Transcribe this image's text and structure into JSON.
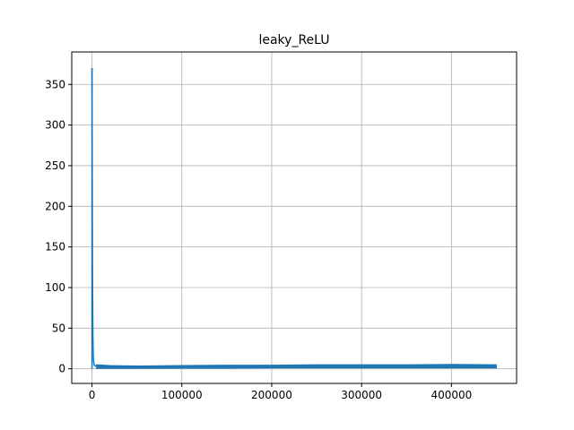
{
  "chart_data": {
    "type": "line",
    "title": "leaky_ReLU",
    "xlabel": "",
    "ylabel": "",
    "xlim": [
      -22500,
      472500
    ],
    "ylim": [
      -18,
      390
    ],
    "xticks": [
      0,
      100000,
      200000,
      300000,
      400000
    ],
    "xtick_labels": [
      "0",
      "100000",
      "200000",
      "300000",
      "400000"
    ],
    "yticks": [
      0,
      50,
      100,
      150,
      200,
      250,
      300,
      350
    ],
    "ytick_labels": [
      "0",
      "50",
      "100",
      "150",
      "200",
      "250",
      "300",
      "350"
    ],
    "grid": true,
    "line_color": "#1f77b4",
    "series": [
      {
        "x": [
          0,
          100,
          200,
          400,
          600,
          800,
          1000,
          1500,
          2000,
          3000,
          5000,
          10000,
          20000,
          50000,
          100000,
          150000,
          200000,
          250000,
          300000,
          350000,
          400000,
          450000
        ],
        "y": [
          370,
          350,
          300,
          200,
          120,
          78,
          40,
          14,
          6,
          4,
          3,
          2.5,
          2,
          2,
          2.5,
          2.5,
          2.7,
          2.8,
          3,
          3,
          3,
          3
        ],
        "band": [
          [
            5000,
            0.5,
            5
          ],
          [
            20000,
            0.5,
            4
          ],
          [
            50000,
            0.5,
            3.5
          ],
          [
            100000,
            0.8,
            4
          ],
          [
            150000,
            0.8,
            4.5
          ],
          [
            200000,
            1,
            4.5
          ],
          [
            250000,
            1,
            5
          ],
          [
            300000,
            1,
            5
          ],
          [
            350000,
            1,
            5
          ],
          [
            400000,
            1,
            5.5
          ],
          [
            450000,
            1,
            5
          ]
        ]
      }
    ]
  }
}
